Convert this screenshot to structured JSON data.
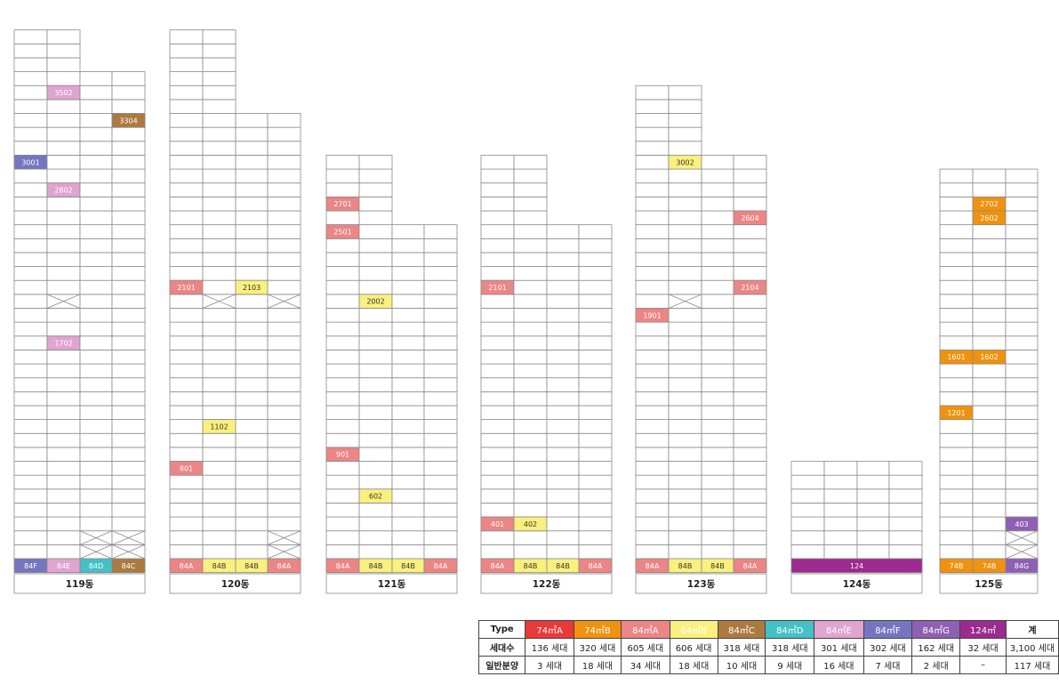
{
  "colors": {
    "74A": "#e83a3a",
    "74B": "#f0920f",
    "84A": "#ec8585",
    "84B": "#faf07e",
    "84C": "#ac7a41",
    "84D": "#44c0c6",
    "84E": "#e0a4d0",
    "84F": "#7576bf",
    "84G": "#8f5fb3",
    "124": "#9c2a8f",
    "light_types": [
      "84B"
    ],
    "grid": "#8a8a8a"
  },
  "buildings": [
    {
      "name": "119동",
      "columns": [
        {
          "floors": 39,
          "base": "84F",
          "base_label": "84F",
          "marks": [
            {
              "floor": 30,
              "type": "84F",
              "label": "3001"
            }
          ]
        },
        {
          "floors": 39,
          "base": "84E",
          "base_label": "84E",
          "marks": [
            {
              "floor": 35,
              "type": "84E",
              "label": "3502"
            },
            {
              "floor": 28,
              "type": "84E",
              "label": "2802"
            },
            {
              "floor": 17,
              "type": "84E",
              "label": "1702"
            }
          ],
          "crossed": [
            20
          ]
        },
        {
          "floors": 36,
          "base": "84D",
          "base_label": "84D",
          "crossed": [
            2,
            3
          ]
        },
        {
          "floors": 36,
          "base": "84C",
          "base_label": "84C",
          "marks": [
            {
              "floor": 33,
              "type": "84C",
              "label": "3304"
            }
          ],
          "crossed": [
            2,
            3
          ]
        }
      ]
    },
    {
      "name": "120동",
      "columns": [
        {
          "floors": 39,
          "base": "84A",
          "base_label": "84A",
          "marks": [
            {
              "floor": 21,
              "type": "84A",
              "label": "2101"
            },
            {
              "floor": 8,
              "type": "84A",
              "label": "801"
            }
          ]
        },
        {
          "floors": 39,
          "base": "84B",
          "base_label": "84B",
          "marks": [
            {
              "floor": 11,
              "type": "84B",
              "label": "1102"
            }
          ],
          "crossed": [
            20
          ]
        },
        {
          "floors": 33,
          "base": "84B",
          "base_label": "84B",
          "marks": [
            {
              "floor": 21,
              "type": "84B",
              "label": "2103"
            }
          ]
        },
        {
          "floors": 33,
          "base": "84A",
          "base_label": "84A",
          "crossed": [
            20,
            2,
            3
          ]
        }
      ]
    },
    {
      "name": "121동",
      "columns": [
        {
          "floors": 30,
          "base": "84A",
          "base_label": "84A",
          "marks": [
            {
              "floor": 27,
              "type": "84A",
              "label": "2701"
            },
            {
              "floor": 25,
              "type": "84A",
              "label": "2501"
            },
            {
              "floor": 9,
              "type": "84A",
              "label": "901"
            }
          ]
        },
        {
          "floors": 30,
          "base": "84B",
          "base_label": "84B",
          "marks": [
            {
              "floor": 20,
              "type": "84B",
              "label": "2002"
            },
            {
              "floor": 6,
              "type": "84B",
              "label": "602"
            }
          ]
        },
        {
          "floors": 25,
          "base": "84B",
          "base_label": "84B"
        },
        {
          "floors": 25,
          "base": "84A",
          "base_label": "84A"
        }
      ]
    },
    {
      "name": "122동",
      "columns": [
        {
          "floors": 30,
          "base": "84A",
          "base_label": "84A",
          "marks": [
            {
              "floor": 21,
              "type": "84A",
              "label": "2101"
            },
            {
              "floor": 4,
              "type": "84A",
              "label": "401"
            }
          ]
        },
        {
          "floors": 30,
          "base": "84B",
          "base_label": "84B",
          "marks": [
            {
              "floor": 4,
              "type": "84B",
              "label": "402"
            }
          ]
        },
        {
          "floors": 25,
          "base": "84B",
          "base_label": "84B"
        },
        {
          "floors": 25,
          "base": "84A",
          "base_label": "84A"
        }
      ]
    },
    {
      "name": "123동",
      "columns": [
        {
          "floors": 35,
          "base": "84A",
          "base_label": "84A",
          "marks": [
            {
              "floor": 19,
              "type": "84A",
              "label": "1901"
            }
          ]
        },
        {
          "floors": 35,
          "base": "84B",
          "base_label": "84B",
          "marks": [
            {
              "floor": 30,
              "type": "84B",
              "label": "3002"
            }
          ],
          "crossed": [
            20
          ]
        },
        {
          "floors": 30,
          "base": "84B",
          "base_label": "84B"
        },
        {
          "floors": 30,
          "base": "84A",
          "base_label": "84A",
          "marks": [
            {
              "floor": 26,
              "type": "84A",
              "label": "2604"
            },
            {
              "floor": 21,
              "type": "84A",
              "label": "2104"
            }
          ]
        }
      ]
    },
    {
      "name": "124동",
      "merged_base": {
        "type": "124",
        "label": "124"
      },
      "columns": [
        {
          "floors": 8
        },
        {
          "floors": 8
        },
        {
          "floors": 8
        },
        {
          "floors": 8
        }
      ]
    },
    {
      "name": "125동",
      "columns": [
        {
          "floors": 29,
          "base": "74B",
          "base_label": "74B",
          "marks": [
            {
              "floor": 16,
              "type": "74B",
              "label": "1601"
            },
            {
              "floor": 12,
              "type": "74B",
              "label": "1201"
            }
          ]
        },
        {
          "floors": 29,
          "base": "74B",
          "base_label": "74B",
          "marks": [
            {
              "floor": 27,
              "type": "74B",
              "label": "2702"
            },
            {
              "floor": 26,
              "type": "74B",
              "label": "2602"
            },
            {
              "floor": 16,
              "type": "74B",
              "label": "1602"
            }
          ]
        },
        {
          "floors": 29,
          "base": "84G",
          "base_label": "84G",
          "marks": [
            {
              "floor": 4,
              "type": "84G",
              "label": "403"
            }
          ],
          "crossed": [
            2,
            3
          ]
        }
      ]
    }
  ],
  "legend": {
    "row_labels": [
      "Type",
      "세대수",
      "일반분양"
    ],
    "columns": [
      {
        "label": "74㎡A",
        "color": "74A",
        "units": "136 세대",
        "sale": "3 세대"
      },
      {
        "label": "74㎡B",
        "color": "74B",
        "units": "320 세대",
        "sale": "18 세대"
      },
      {
        "label": "84㎡A",
        "color": "84A",
        "units": "605 세대",
        "sale": "34 세대"
      },
      {
        "label": "84㎡B",
        "color": "84B",
        "units": "606 세대",
        "sale": "18 세대"
      },
      {
        "label": "84㎡C",
        "color": "84C",
        "units": "318 세대",
        "sale": "10 세대"
      },
      {
        "label": "84㎡D",
        "color": "84D",
        "units": "318 세대",
        "sale": "9 세대"
      },
      {
        "label": "84㎡E",
        "color": "84E",
        "units": "301 세대",
        "sale": "16 세대"
      },
      {
        "label": "84㎡F",
        "color": "84F",
        "units": "302 세대",
        "sale": "7 세대"
      },
      {
        "label": "84㎡G",
        "color": "84G",
        "units": "162 세대",
        "sale": "2 세대"
      },
      {
        "label": "124㎡",
        "color": "124",
        "units": "32 세대",
        "sale": "–"
      },
      {
        "label": "계",
        "color": "",
        "units": "3,100 세대",
        "sale": "117 세대"
      }
    ]
  }
}
